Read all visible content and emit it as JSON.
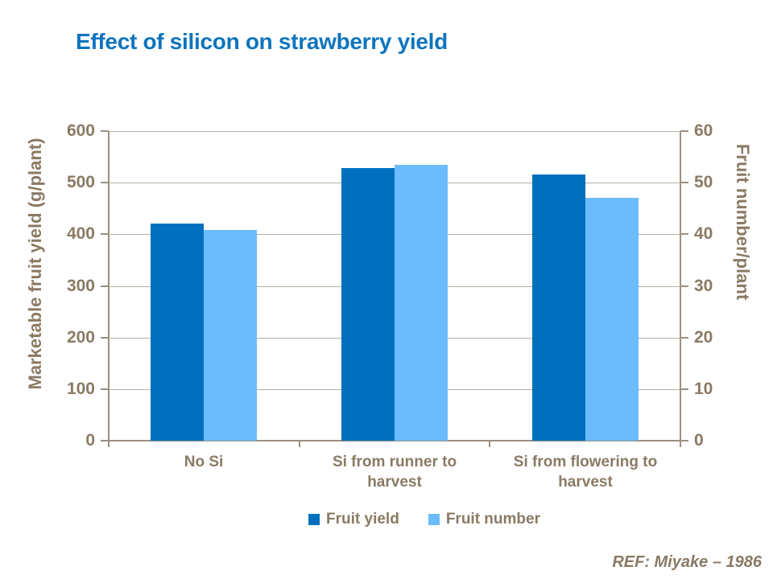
{
  "slide": {
    "background": "#ffffff"
  },
  "title": {
    "text": "Effect of silicon on strawberry yield",
    "color": "#0e74be"
  },
  "footer": {
    "ref_text": "REF:  Miyake – 1986",
    "color": "#8a7a64"
  },
  "chart_data": {
    "type": "bar",
    "title": "Effect of silicon on strawberry yield",
    "categories": [
      "No Si",
      "Si from runner to harvest",
      "Si from flowering to harvest"
    ],
    "category_label_lines": [
      [
        "No Si"
      ],
      [
        "Si from runner to",
        "harvest"
      ],
      [
        "Si from flowering to",
        "harvest"
      ]
    ],
    "series": [
      {
        "name": "Fruit yield",
        "axis": "left",
        "color": "#0070be",
        "values": [
          420,
          529,
          516
        ]
      },
      {
        "name": "Fruit number",
        "axis": "right",
        "color": "#6abcfd",
        "values": [
          40.8,
          53.5,
          47.1
        ]
      }
    ],
    "left_axis": {
      "label": "Marketable fruit yield (g/plant)",
      "min": 0,
      "max": 600,
      "step": 100
    },
    "right_axis": {
      "label": "Fruit number/plant",
      "min": 0,
      "max": 60,
      "step": 10
    },
    "legend": {
      "position": "bottom",
      "entries": [
        "Fruit yield",
        "Fruit number"
      ]
    },
    "grid": true,
    "text_color": "#8a7a64",
    "gridline_color": "#b6afa3",
    "axis_color": "#9b8f80"
  }
}
